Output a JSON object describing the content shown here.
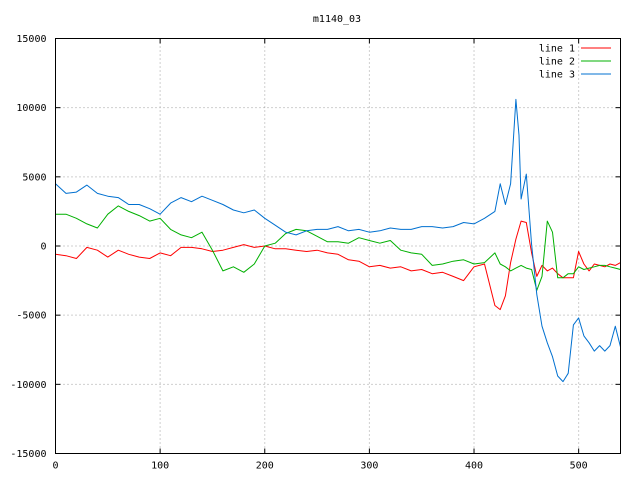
{
  "chart_data": {
    "type": "line",
    "title": "m1140_03",
    "xlabel": "",
    "ylabel": "",
    "xlim": [
      0,
      540
    ],
    "ylim": [
      -15000,
      15000
    ],
    "xticks": [
      0,
      100,
      200,
      300,
      400,
      500
    ],
    "yticks": [
      -15000,
      -10000,
      -5000,
      0,
      5000,
      10000,
      15000
    ],
    "grid": true,
    "legend_position": "top-right",
    "series": [
      {
        "name": "line 1",
        "color": "#ff0000",
        "x": [
          0,
          10,
          20,
          30,
          40,
          50,
          60,
          70,
          80,
          90,
          100,
          110,
          120,
          130,
          140,
          150,
          160,
          170,
          180,
          190,
          200,
          210,
          220,
          230,
          240,
          250,
          260,
          270,
          280,
          290,
          300,
          310,
          320,
          330,
          340,
          350,
          360,
          370,
          380,
          390,
          400,
          410,
          420,
          425,
          430,
          435,
          440,
          445,
          450,
          455,
          460,
          465,
          470,
          475,
          480,
          485,
          490,
          495,
          500,
          505,
          510,
          515,
          520,
          525,
          530,
          535,
          540
        ],
        "y": [
          -600,
          -700,
          -900,
          -100,
          -300,
          -800,
          -300,
          -600,
          -800,
          -900,
          -500,
          -700,
          -100,
          -100,
          -200,
          -400,
          -300,
          -100,
          100,
          -100,
          0,
          -200,
          -200,
          -300,
          -400,
          -300,
          -500,
          -600,
          -1000,
          -1100,
          -1500,
          -1400,
          -1600,
          -1500,
          -1800,
          -1700,
          -2000,
          -1900,
          -2200,
          -2500,
          -1500,
          -1300,
          -4300,
          -4600,
          -3600,
          -1200,
          500,
          1800,
          1700,
          -500,
          -2200,
          -1400,
          -1800,
          -1600,
          -2000,
          -2300,
          -2300,
          -2300,
          -400,
          -1300,
          -1800,
          -1300,
          -1400,
          -1500,
          -1300,
          -1400,
          -1200
        ]
      },
      {
        "name": "line 2",
        "color": "#00b000",
        "x": [
          0,
          10,
          20,
          30,
          40,
          50,
          60,
          70,
          80,
          90,
          100,
          110,
          120,
          130,
          140,
          150,
          160,
          170,
          180,
          190,
          200,
          210,
          220,
          230,
          240,
          250,
          260,
          270,
          280,
          290,
          300,
          310,
          320,
          330,
          340,
          350,
          360,
          370,
          380,
          390,
          400,
          410,
          420,
          425,
          430,
          435,
          440,
          445,
          450,
          455,
          460,
          465,
          470,
          475,
          480,
          485,
          490,
          495,
          500,
          505,
          510,
          515,
          520,
          525,
          530,
          535,
          540
        ],
        "y": [
          2300,
          2300,
          2000,
          1600,
          1300,
          2300,
          2900,
          2500,
          2200,
          1800,
          2000,
          1200,
          800,
          600,
          1000,
          -300,
          -1800,
          -1500,
          -1900,
          -1300,
          0,
          200,
          900,
          1200,
          1100,
          700,
          300,
          300,
          200,
          600,
          400,
          200,
          400,
          -300,
          -500,
          -600,
          -1400,
          -1300,
          -1100,
          -1000,
          -1300,
          -1200,
          -500,
          -1300,
          -1500,
          -1800,
          -1600,
          -1400,
          -1600,
          -1700,
          -3200,
          -2200,
          1800,
          1000,
          -2300,
          -2300,
          -2000,
          -2000,
          -1500,
          -1700,
          -1600,
          -1500,
          -1400,
          -1400,
          -1500,
          -1600,
          -1700
        ]
      },
      {
        "name": "line 3",
        "color": "#0070d0",
        "x": [
          0,
          10,
          20,
          30,
          40,
          50,
          60,
          70,
          80,
          90,
          100,
          110,
          120,
          130,
          140,
          150,
          160,
          170,
          180,
          190,
          200,
          210,
          220,
          230,
          240,
          250,
          260,
          270,
          280,
          290,
          300,
          310,
          320,
          330,
          340,
          350,
          360,
          370,
          380,
          390,
          400,
          410,
          420,
          425,
          430,
          435,
          440,
          443,
          445,
          450,
          455,
          460,
          465,
          470,
          475,
          480,
          485,
          490,
          495,
          500,
          505,
          510,
          515,
          520,
          525,
          530,
          535,
          540
        ],
        "y": [
          4500,
          3800,
          3900,
          4400,
          3800,
          3600,
          3500,
          3000,
          3000,
          2700,
          2300,
          3100,
          3500,
          3200,
          3600,
          3300,
          3000,
          2600,
          2400,
          2600,
          2000,
          1500,
          1000,
          800,
          1100,
          1200,
          1200,
          1400,
          1100,
          1200,
          1000,
          1100,
          1300,
          1200,
          1200,
          1400,
          1400,
          1300,
          1400,
          1700,
          1600,
          2000,
          2500,
          4500,
          3000,
          4500,
          10600,
          8000,
          3400,
          5200,
          100,
          -3500,
          -5800,
          -7000,
          -8000,
          -9400,
          -9800,
          -9200,
          -5700,
          -5200,
          -6500,
          -7000,
          -7600,
          -7200,
          -7600,
          -7200,
          -5800,
          -7300
        ]
      }
    ]
  }
}
